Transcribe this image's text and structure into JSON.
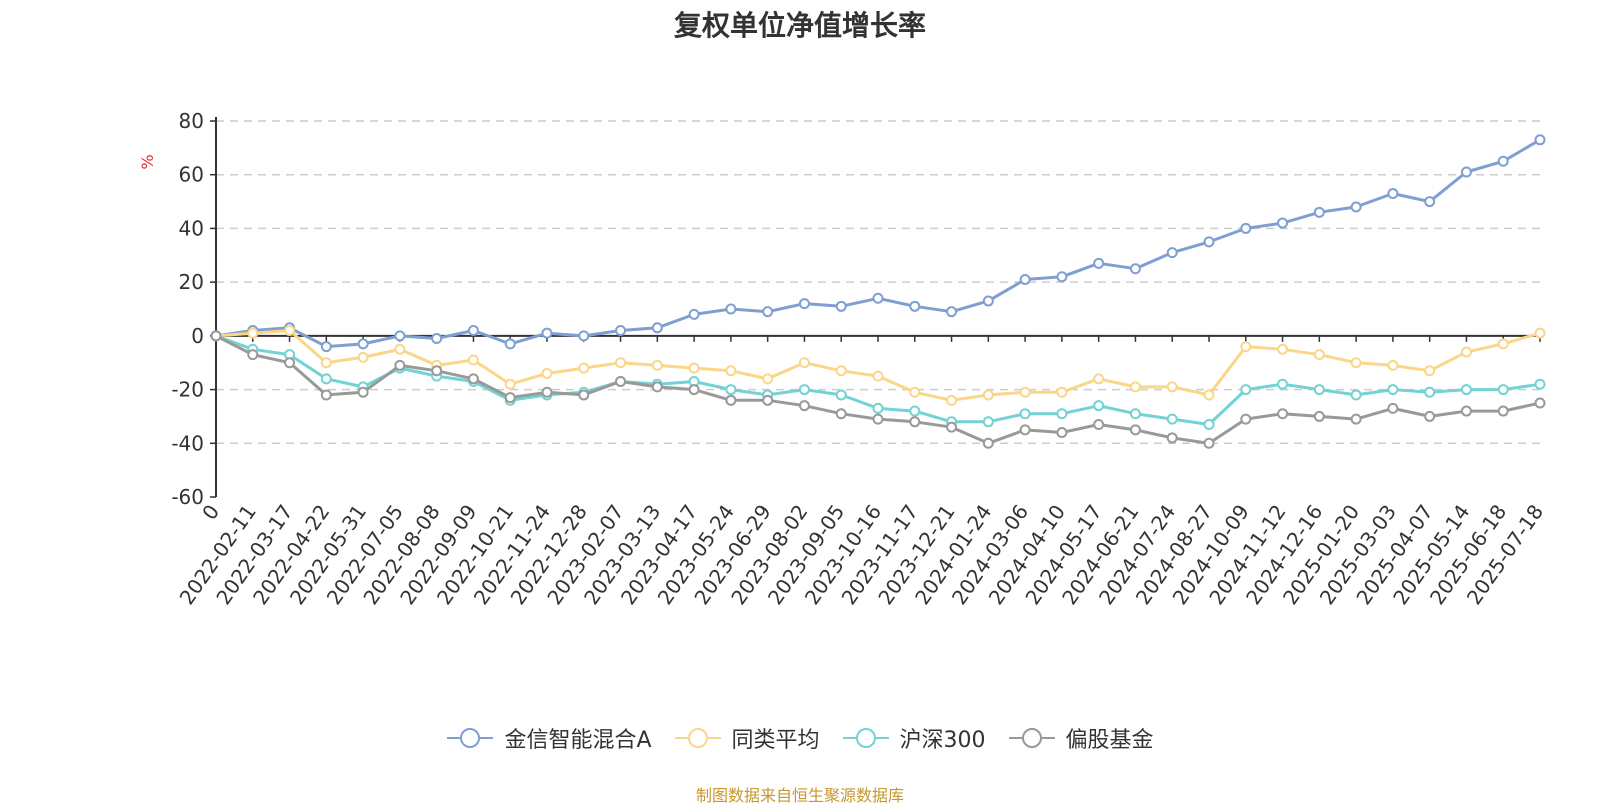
{
  "title": "复权单位净值增长率",
  "source": "制图数据来自恒生聚源数据库",
  "chart_data": {
    "type": "line",
    "ylabel": "%",
    "ylim": [
      -60,
      80
    ],
    "y_ticks": [
      80,
      60,
      40,
      20,
      0,
      -20,
      -40,
      -60
    ],
    "x_start_label": "0",
    "x_tick_labels": [
      "2022-02-11",
      "2022-03-17",
      "2022-04-22",
      "2022-05-31",
      "2022-07-05",
      "2022-08-08",
      "2022-09-09",
      "2022-10-21",
      "2022-11-24",
      "2022-12-28",
      "2023-02-07",
      "2023-03-13",
      "2023-04-17",
      "2023-05-24",
      "2023-06-29",
      "2023-08-02",
      "2023-09-05",
      "2023-10-16",
      "2023-11-17",
      "2023-12-21",
      "2024-01-24",
      "2024-03-06",
      "2024-04-10",
      "2024-05-17",
      "2024-06-21",
      "2024-07-24",
      "2024-08-27",
      "2024-10-09",
      "2024-11-12",
      "2024-12-16",
      "2025-01-20",
      "2025-03-03",
      "2025-04-07",
      "2025-05-14",
      "2025-06-18",
      "2025-07-18"
    ],
    "x": [
      "0",
      "2022-02-11",
      "2022-03-17",
      "2022-04-22",
      "2022-05-31",
      "2022-07-05",
      "2022-08-08",
      "2022-09-09",
      "2022-10-21",
      "2022-11-24",
      "2022-12-28",
      "2023-02-07",
      "2023-03-13",
      "2023-04-17",
      "2023-05-24",
      "2023-06-29",
      "2023-08-02",
      "2023-09-05",
      "2023-10-16",
      "2023-11-17",
      "2023-12-21",
      "2024-01-24",
      "2024-03-06",
      "2024-04-10",
      "2024-05-17",
      "2024-06-21",
      "2024-07-24",
      "2024-08-27",
      "2024-10-09",
      "2024-11-12",
      "2024-12-16",
      "2025-01-20",
      "2025-03-03",
      "2025-04-07",
      "2025-05-14",
      "2025-06-18",
      "2025-07-18"
    ],
    "grid": true,
    "legend_position": "bottom",
    "series": [
      {
        "name": "金信智能混合A",
        "color": "#7f9fd3",
        "values": [
          0,
          2,
          3,
          -4,
          -3,
          0,
          -1,
          2,
          -3,
          1,
          0,
          2,
          3,
          8,
          10,
          9,
          12,
          11,
          14,
          11,
          9,
          13,
          21,
          22,
          27,
          25,
          31,
          35,
          40,
          42,
          46,
          48,
          53,
          50,
          61,
          65,
          73
        ]
      },
      {
        "name": "同类平均",
        "color": "#fbd688",
        "values": [
          0,
          1,
          2,
          -10,
          -8,
          -5,
          -11,
          -9,
          -18,
          -14,
          -12,
          -10,
          -11,
          -12,
          -13,
          -16,
          -10,
          -13,
          -15,
          -21,
          -24,
          -22,
          -21,
          -21,
          -16,
          -19,
          -19,
          -22,
          -4,
          -5,
          -7,
          -10,
          -11,
          -13,
          -6,
          -3,
          1
        ]
      },
      {
        "name": "沪深300",
        "color": "#72d2d4",
        "values": [
          0,
          -5,
          -7,
          -16,
          -19,
          -12,
          -15,
          -17,
          -24,
          -22,
          -21,
          -17,
          -18,
          -17,
          -20,
          -22,
          -20,
          -22,
          -27,
          -28,
          -32,
          -32,
          -29,
          -29,
          -26,
          -29,
          -31,
          -33,
          -20,
          -18,
          -20,
          -22,
          -20,
          -21,
          -20,
          -20,
          -18
        ]
      },
      {
        "name": "偏股基金",
        "color": "#999999",
        "values": [
          0,
          -7,
          -10,
          -22,
          -21,
          -11,
          -13,
          -16,
          -23,
          -21,
          -22,
          -17,
          -19,
          -20,
          -24,
          -24,
          -26,
          -29,
          -31,
          -32,
          -34,
          -40,
          -35,
          -36,
          -33,
          -35,
          -38,
          -40,
          -31,
          -29,
          -30,
          -31,
          -27,
          -30,
          -28,
          -28,
          -25
        ]
      }
    ]
  }
}
